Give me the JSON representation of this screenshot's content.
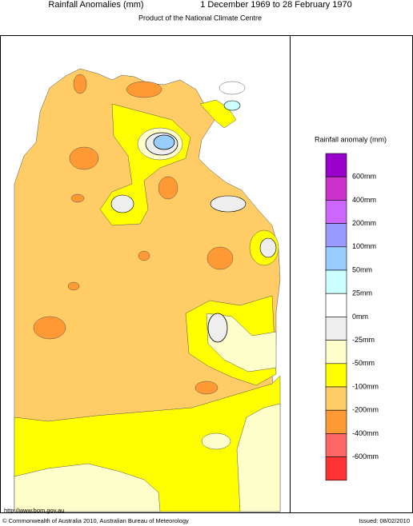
{
  "header": {
    "title": "Rainfall Anomalies (mm)",
    "period": "1 December 1969 to 28 February 1970",
    "subtitle": "Product of the National Climate Centre"
  },
  "legend": {
    "title": "Rainfall anomaly (mm)",
    "labels": [
      "600mm",
      "400mm",
      "200mm",
      "100mm",
      "50mm",
      "25mm",
      "0mm",
      "-25mm",
      "-50mm",
      "-100mm",
      "-200mm",
      "-400mm",
      "-600mm"
    ],
    "colors": [
      "#9900cc",
      "#cc33cc",
      "#cc66ff",
      "#9999ff",
      "#99ccff",
      "#ccffff",
      "#ffffff",
      "#eeeeee",
      "#ffffcc",
      "#ffff00",
      "#ffcc66",
      "#ff9933",
      "#ff6666",
      "#ff3333"
    ]
  },
  "footer": {
    "url": "http://www.bom.gov.au",
    "copyright": "© Commonwealth of Australia 2010, Australian Bureau of Meteorology",
    "issued": "Issued: 08/02/2010"
  }
}
